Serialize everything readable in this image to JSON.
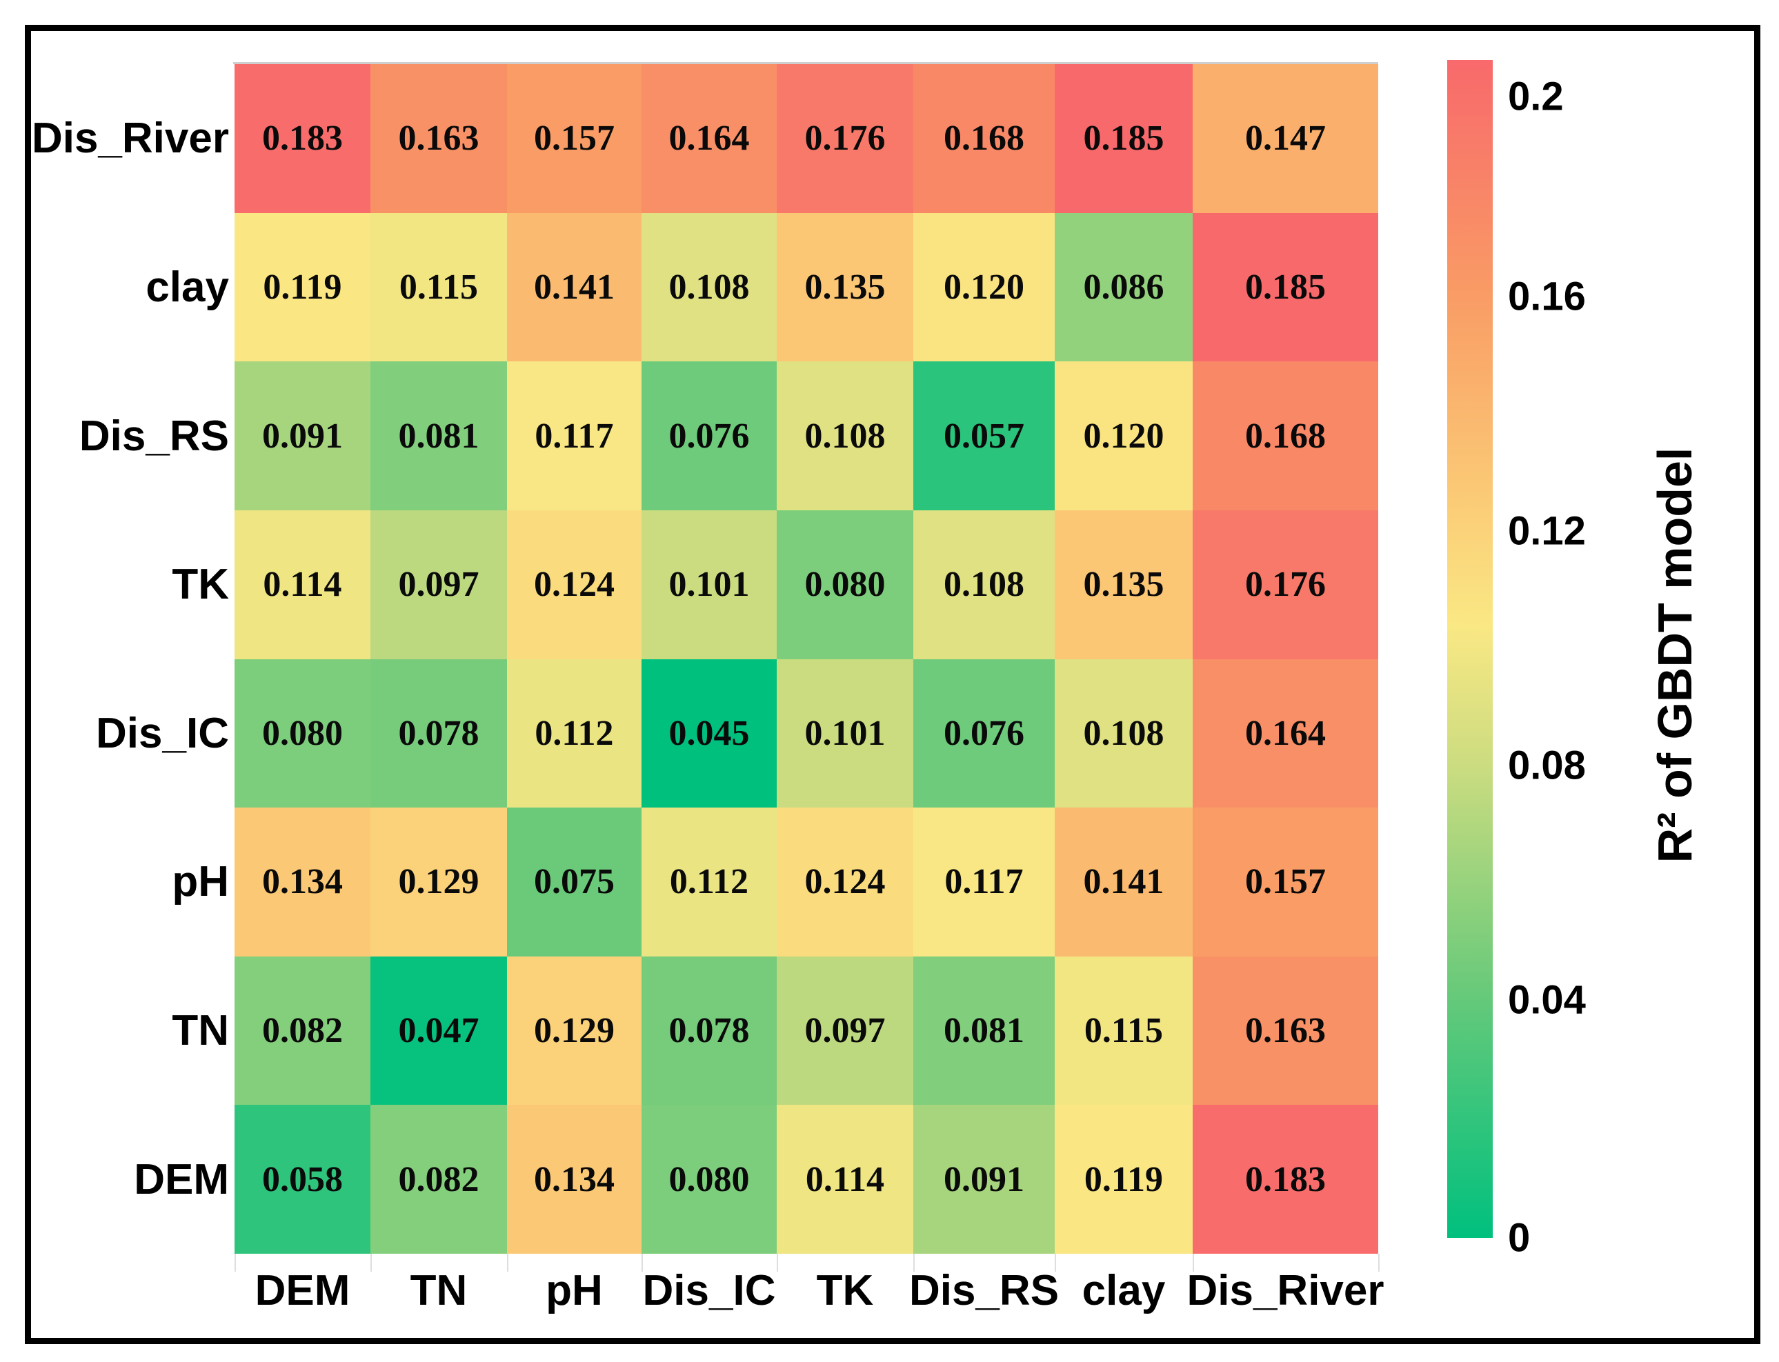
{
  "figure": {
    "background": "#ffffff",
    "frame_border_color": "#000000",
    "gridline_color": "#cfcfcf"
  },
  "chart_data": {
    "type": "heatmap",
    "title": "",
    "x_categories": [
      "DEM",
      "TN",
      "pH",
      "Dis_IC",
      "TK",
      "Dis_RS",
      "clay",
      "Dis_River"
    ],
    "y_categories": [
      "Dis_River",
      "clay",
      "Dis_RS",
      "TK",
      "Dis_IC",
      "pH",
      "TN",
      "DEM"
    ],
    "values": [
      [
        "0.183",
        "0.163",
        "0.157",
        "0.164",
        "0.176",
        "0.168",
        "0.185",
        "0.147"
      ],
      [
        "0.119",
        "0.115",
        "0.141",
        "0.108",
        "0.135",
        "0.120",
        "0.086",
        "0.185"
      ],
      [
        "0.091",
        "0.081",
        "0.117",
        "0.076",
        "0.108",
        "0.057",
        "0.120",
        "0.168"
      ],
      [
        "0.114",
        "0.097",
        "0.124",
        "0.101",
        "0.080",
        "0.108",
        "0.135",
        "0.176"
      ],
      [
        "0.080",
        "0.078",
        "0.112",
        "0.045",
        "0.101",
        "0.076",
        "0.108",
        "0.164"
      ],
      [
        "0.134",
        "0.129",
        "0.075",
        "0.112",
        "0.124",
        "0.117",
        "0.141",
        "0.157"
      ],
      [
        "0.082",
        "0.047",
        "0.129",
        "0.078",
        "0.097",
        "0.081",
        "0.115",
        "0.163"
      ],
      [
        "0.058",
        "0.082",
        "0.134",
        "0.080",
        "0.114",
        "0.091",
        "0.119",
        "0.183"
      ]
    ],
    "cell_value_min": 0.045,
    "cell_value_max": 0.185,
    "grid": false,
    "legend_position": "right",
    "colorbar": {
      "title": "R² of GBDT model",
      "ticks": [
        "0.2",
        "0.16",
        "0.12",
        "0.08",
        "0.04",
        "0"
      ],
      "range": [
        0,
        0.2
      ]
    },
    "colormap_stops": [
      {
        "t": 0.0,
        "color": "#00C07E"
      },
      {
        "t": 0.2,
        "color": "#63C97A"
      },
      {
        "t": 0.4,
        "color": "#CBDC80"
      },
      {
        "t": 0.52,
        "color": "#FAE884"
      },
      {
        "t": 0.62,
        "color": "#FBCD77"
      },
      {
        "t": 0.8,
        "color": "#F99C65"
      },
      {
        "t": 1.0,
        "color": "#F8696B"
      }
    ]
  }
}
